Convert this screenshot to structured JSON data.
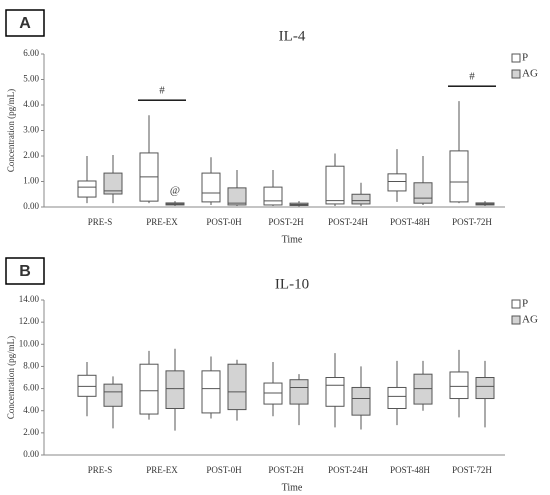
{
  "chart_data": [
    {
      "type": "box",
      "panel": "A",
      "title": "IL-4",
      "xlabel": "Time",
      "ylabel": "Concentration (pg/mL)",
      "categories": [
        "PRE-S",
        "PRE-EX",
        "POST-0H",
        "POST-2H",
        "POST-24H",
        "POST-48H",
        "POST-72H"
      ],
      "ylim": [
        0,
        6
      ],
      "yticks": [
        {
          "value": 0,
          "label": "0.00"
        },
        {
          "value": 1,
          "label": "1.00"
        },
        {
          "value": 2,
          "label": "2.00"
        },
        {
          "value": 3,
          "label": "3.00"
        },
        {
          "value": 4,
          "label": "4.00"
        },
        {
          "value": 5,
          "label": "5.00"
        },
        {
          "value": 6,
          "label": "6.00"
        }
      ],
      "legend": "upper right",
      "series": [
        {
          "name": "P",
          "color": "#ffffff",
          "values": [
            {
              "min": 0.15,
              "q1": 0.39,
              "median": 0.78,
              "q3": 1.02,
              "max": 2.0
            },
            {
              "min": 0.15,
              "q1": 0.23,
              "median": 1.18,
              "q3": 2.12,
              "max": 3.6
            },
            {
              "min": 0.08,
              "q1": 0.2,
              "median": 0.55,
              "q3": 1.33,
              "max": 1.95
            },
            {
              "min": 0.04,
              "q1": 0.08,
              "median": 0.24,
              "q3": 0.78,
              "max": 1.45
            },
            {
              "min": 0.04,
              "q1": 0.12,
              "median": 0.25,
              "q3": 1.6,
              "max": 2.1
            },
            {
              "min": 0.2,
              "q1": 0.63,
              "median": 1.0,
              "q3": 1.3,
              "max": 2.27
            },
            {
              "min": 0.15,
              "q1": 0.2,
              "median": 0.98,
              "q3": 2.2,
              "max": 4.15
            }
          ]
        },
        {
          "name": "AG",
          "color": "#d3d3d3",
          "values": [
            {
              "min": 0.15,
              "q1": 0.51,
              "median": 0.63,
              "q3": 1.33,
              "max": 2.04
            },
            {
              "min": 0.04,
              "q1": 0.08,
              "median": 0.12,
              "q3": 0.16,
              "max": 0.23
            },
            {
              "min": 0.04,
              "q1": 0.08,
              "median": 0.15,
              "q3": 0.75,
              "max": 1.45
            },
            {
              "min": 0.02,
              "q1": 0.06,
              "median": 0.1,
              "q3": 0.15,
              "max": 0.23
            },
            {
              "min": 0.04,
              "q1": 0.12,
              "median": 0.25,
              "q3": 0.5,
              "max": 0.95
            },
            {
              "min": 0.08,
              "q1": 0.15,
              "median": 0.35,
              "q3": 0.95,
              "max": 2.0
            },
            {
              "min": 0.04,
              "q1": 0.08,
              "median": 0.12,
              "q3": 0.16,
              "max": 0.23
            }
          ]
        }
      ],
      "annotations": [
        {
          "text": "#",
          "category": "PRE-EX"
        },
        {
          "text": "@",
          "category": "PRE-EX",
          "series": "AG"
        },
        {
          "text": "#",
          "category": "POST-72H"
        }
      ]
    },
    {
      "type": "box",
      "panel": "B",
      "title": "IL-10",
      "xlabel": "Time",
      "ylabel": "Concentration (pg/mL)",
      "categories": [
        "PRE-S",
        "PRE-EX",
        "POST-0H",
        "POST-2H",
        "POST-24H",
        "POST-48H",
        "POST-72H"
      ],
      "ylim": [
        0,
        14
      ],
      "yticks": [
        {
          "value": 0,
          "label": "0.00"
        },
        {
          "value": 2,
          "label": "2.00"
        },
        {
          "value": 4,
          "label": "4.00"
        },
        {
          "value": 6,
          "label": "6.00"
        },
        {
          "value": 8,
          "label": "8.00"
        },
        {
          "value": 10,
          "label": "10.00"
        },
        {
          "value": 12,
          "label": "12.00"
        },
        {
          "value": 14,
          "label": "14.00"
        }
      ],
      "legend": "upper right",
      "series": [
        {
          "name": "P",
          "color": "#ffffff",
          "values": [
            {
              "min": 3.5,
              "q1": 5.3,
              "median": 6.2,
              "q3": 7.2,
              "max": 8.4
            },
            {
              "min": 3.2,
              "q1": 3.7,
              "median": 5.8,
              "q3": 8.2,
              "max": 9.4
            },
            {
              "min": 3.3,
              "q1": 3.8,
              "median": 6.0,
              "q3": 7.6,
              "max": 8.9
            },
            {
              "min": 3.5,
              "q1": 4.6,
              "median": 5.6,
              "q3": 6.5,
              "max": 8.4
            },
            {
              "min": 2.5,
              "q1": 4.4,
              "median": 6.3,
              "q3": 7.0,
              "max": 9.2
            },
            {
              "min": 2.7,
              "q1": 4.2,
              "median": 5.3,
              "q3": 6.1,
              "max": 8.5
            },
            {
              "min": 3.4,
              "q1": 5.1,
              "median": 6.2,
              "q3": 7.5,
              "max": 9.5
            }
          ]
        },
        {
          "name": "AG",
          "color": "#d3d3d3",
          "values": [
            {
              "min": 2.4,
              "q1": 4.4,
              "median": 5.7,
              "q3": 6.4,
              "max": 7.1
            },
            {
              "min": 2.2,
              "q1": 4.2,
              "median": 6.0,
              "q3": 7.6,
              "max": 9.6
            },
            {
              "min": 3.1,
              "q1": 4.1,
              "median": 5.7,
              "q3": 8.2,
              "max": 8.6
            },
            {
              "min": 2.7,
              "q1": 4.6,
              "median": 6.1,
              "q3": 6.8,
              "max": 7.3
            },
            {
              "min": 2.3,
              "q1": 3.6,
              "median": 5.1,
              "q3": 6.1,
              "max": 8.0
            },
            {
              "min": 4.0,
              "q1": 4.6,
              "median": 6.0,
              "q3": 7.3,
              "max": 8.5
            },
            {
              "min": 2.5,
              "q1": 5.1,
              "median": 6.2,
              "q3": 7.0,
              "max": 8.5
            }
          ]
        }
      ]
    }
  ]
}
